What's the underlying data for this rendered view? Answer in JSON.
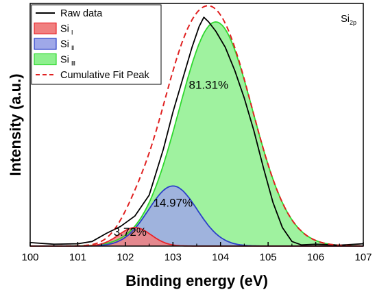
{
  "chart_data": {
    "type": "area",
    "xlabel": "Binding energy (eV)",
    "ylabel": "Intensity (a.u.)",
    "xlim": [
      100,
      107
    ],
    "ylim": [
      0,
      1.05
    ],
    "xticks": [
      "100",
      "101",
      "102",
      "103",
      "104",
      "105",
      "106",
      "107"
    ],
    "yticks_shown": false,
    "spectrum_label": {
      "base": "Si",
      "sub": "2p"
    },
    "legend_position": "top-left",
    "series": [
      {
        "name_base": "Raw data",
        "name_sub": "",
        "kind": "raw",
        "color": "#000000"
      },
      {
        "name_base": "Si",
        "name_sub": "Ⅰ",
        "kind": "peak",
        "center": 102.2,
        "amplitude": 0.08,
        "fwhm": 0.8,
        "color": "#e8242a",
        "fill": "#f08080",
        "percent_label": "3.72%"
      },
      {
        "name_base": "Si",
        "name_sub": "Ⅱ",
        "kind": "peak",
        "center": 103.0,
        "amplitude": 0.26,
        "fwhm": 1.2,
        "color": "#2a3fc8",
        "fill": "#9fa8e8",
        "percent_label": "14.97%"
      },
      {
        "name_base": "Si",
        "name_sub": "Ⅲ",
        "kind": "peak",
        "center": 103.9,
        "amplitude": 0.97,
        "fwhm": 1.82,
        "color": "#2ed82e",
        "fill": "#8ef08e",
        "percent_label": "81.31%"
      },
      {
        "name_base": "Cumulative Fit Peak",
        "name_sub": "",
        "kind": "fit",
        "color": "#e02020"
      }
    ],
    "raw_data": {
      "x": [
        100.0,
        100.5,
        101.0,
        101.3,
        101.6,
        101.9,
        102.2,
        102.5,
        102.8,
        103.0,
        103.2,
        103.4,
        103.55,
        103.65,
        103.75,
        103.9,
        104.1,
        104.3,
        104.5,
        104.7,
        104.9,
        105.1,
        105.3,
        105.5,
        105.7,
        106.0,
        106.5,
        107.0
      ],
      "y": [
        0.015,
        0.008,
        0.01,
        0.02,
        0.055,
        0.085,
        0.13,
        0.22,
        0.42,
        0.58,
        0.72,
        0.86,
        0.95,
        0.99,
        0.97,
        0.93,
        0.86,
        0.76,
        0.64,
        0.5,
        0.34,
        0.19,
        0.08,
        0.02,
        0.005,
        0.008,
        0.004,
        0.01
      ]
    }
  }
}
